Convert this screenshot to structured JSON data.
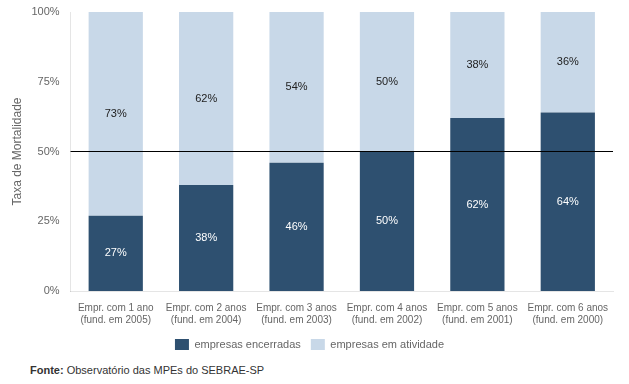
{
  "chart_data": {
    "type": "bar",
    "stacked": true,
    "categories": [
      "Empr. com 1 ano\n(fund. em 2005)",
      "Empr. com 2 anos\n(fund. em 2004)",
      "Empr. com 3 anos\n(fund. em 2003)",
      "Empr. com 4 anos\n(fund. em 2002)",
      "Empr. com 5 anos\n(fund. em 2001)",
      "Empr. com 6 anos\n(fund. em 2000)"
    ],
    "series": [
      {
        "name": "empresas encerradas",
        "color": "#2E5070",
        "values": [
          27,
          38,
          46,
          50,
          62,
          64
        ],
        "value_labels": [
          "27%",
          "38%",
          "46%",
          "50%",
          "62%",
          "64%"
        ]
      },
      {
        "name": "empresas em atividade",
        "color": "#C8D8E8",
        "values": [
          73,
          62,
          54,
          50,
          38,
          36
        ],
        "value_labels": [
          "73%",
          "62%",
          "54%",
          "50%",
          "38%",
          "36%"
        ]
      }
    ],
    "data_labels": true,
    "ylabel": "Taxa de Mortalidade",
    "ylim": [
      0,
      100
    ],
    "yticks": [
      {
        "value": 0,
        "label": "0%"
      },
      {
        "value": 25,
        "label": "25%"
      },
      {
        "value": 50,
        "label": "50%"
      },
      {
        "value": 75,
        "label": "75%"
      },
      {
        "value": 100,
        "label": "100%"
      }
    ],
    "hline": 50,
    "grid": false,
    "legend": "bottom",
    "source_label": "Fonte:",
    "source": "Observatório das MPEs do SEBRAE-SP"
  }
}
